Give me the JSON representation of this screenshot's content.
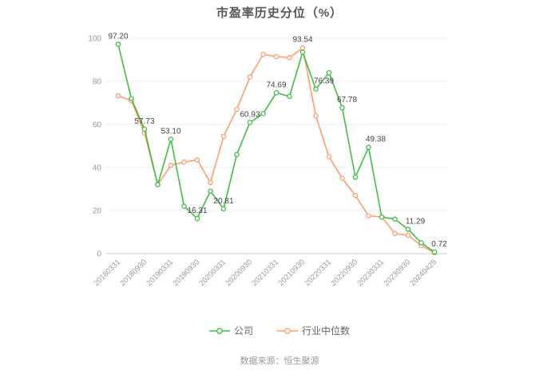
{
  "title": "市盈率历史分位（%）",
  "source": "数据来源：恒生聚源",
  "colors": {
    "company": "#3fbf44",
    "industry": "#ff9d6e",
    "grid": "#ededed",
    "axis_line": "#cccccc",
    "tick_text": "#999999",
    "point_label_text": "#444444",
    "title_text": "#565656"
  },
  "chart_data": {
    "type": "line",
    "title": "市盈率历史分位（%）",
    "xlabel": "",
    "ylabel": "",
    "ylim": [
      0,
      100
    ],
    "yticks": [
      0,
      20,
      40,
      60,
      80,
      100
    ],
    "grid": "horizontal",
    "legend_position": "bottom",
    "x": [
      "20180331",
      "20180630",
      "20180930",
      "20181231",
      "20190331",
      "20190630",
      "20190930",
      "20191231",
      "20200331",
      "20200630",
      "20200930",
      "20201231",
      "20210331",
      "20210630",
      "20210930",
      "20211231",
      "20220331",
      "20220630",
      "20220930",
      "20221231",
      "20230331",
      "20230630",
      "20230930",
      "20231231",
      "20240425"
    ],
    "visible_tick_labels": [
      "20180331",
      "20180930",
      "20190331",
      "20190930",
      "20200331",
      "20200930",
      "20210331",
      "20210930",
      "20220331",
      "20220930",
      "20230331",
      "20230930",
      "20240425"
    ],
    "series": [
      {
        "name": "公司",
        "color": "#3fbf44",
        "values": [
          97.2,
          72,
          57.73,
          32,
          53.1,
          22,
          16.31,
          29,
          20.81,
          46,
          60.93,
          65,
          74.69,
          73,
          93.54,
          76.39,
          84,
          67.78,
          35.5,
          49.38,
          17,
          16,
          11.29,
          5,
          0.72
        ],
        "point_labels": [
          {
            "i": 0,
            "text": "97.20"
          },
          {
            "i": 2,
            "text": "57.73"
          },
          {
            "i": 4,
            "text": "53.10"
          },
          {
            "i": 6,
            "text": "16.31"
          },
          {
            "i": 8,
            "text": "20.81"
          },
          {
            "i": 10,
            "text": "60.93"
          },
          {
            "i": 12,
            "text": "74.69"
          },
          {
            "i": 14,
            "text": "93.54",
            "dy": -13
          },
          {
            "i": 15,
            "text": "76.39",
            "dx": 10
          },
          {
            "i": 17,
            "text": "67.78",
            "dx": 6
          },
          {
            "i": 19,
            "text": "49.38",
            "dx": 9
          },
          {
            "i": 22,
            "text": "11.29",
            "dx": 9
          },
          {
            "i": 24,
            "text": "0.72",
            "dx": 6
          }
        ]
      },
      {
        "name": "行业中位数",
        "color": "#ff9d6e",
        "values": [
          73.3,
          71,
          56,
          32,
          41,
          42.5,
          43.5,
          33,
          54.5,
          67,
          82,
          92.5,
          91.5,
          91,
          95.5,
          64,
          45,
          35,
          27,
          17.5,
          17,
          9.3,
          8.5,
          3.7,
          0.4
        ]
      }
    ]
  }
}
